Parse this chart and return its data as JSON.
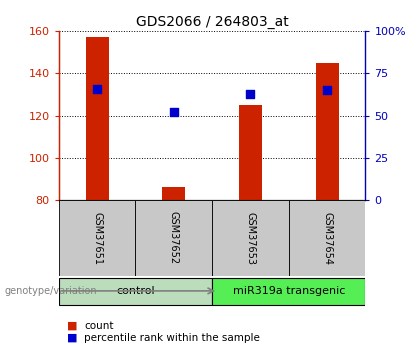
{
  "title": "GDS2066 / 264803_at",
  "samples": [
    "GSM37651",
    "GSM37652",
    "GSM37653",
    "GSM37654"
  ],
  "count_values": [
    157,
    86,
    125,
    145
  ],
  "percentile_values": [
    66,
    52,
    63,
    65
  ],
  "ylim_left": [
    80,
    160
  ],
  "ylim_right": [
    0,
    100
  ],
  "yticks_left": [
    80,
    100,
    120,
    140,
    160
  ],
  "yticks_right": [
    0,
    25,
    50,
    75,
    100
  ],
  "yticklabels_right": [
    "0",
    "25",
    "50",
    "75",
    "100%"
  ],
  "bar_color": "#cc2200",
  "dot_color": "#0000cc",
  "axis_left_color": "#cc2200",
  "axis_right_color": "#0000bb",
  "bg_color": "#ffffff",
  "label_area_color": "#c8c8c8",
  "group_color_control": "#bbddbb",
  "group_color_transgenic": "#55ee55",
  "legend_count_label": "count",
  "legend_pct_label": "percentile rank within the sample",
  "genotype_label": "genotype/variation",
  "bar_width": 0.3,
  "dot_size": 35
}
